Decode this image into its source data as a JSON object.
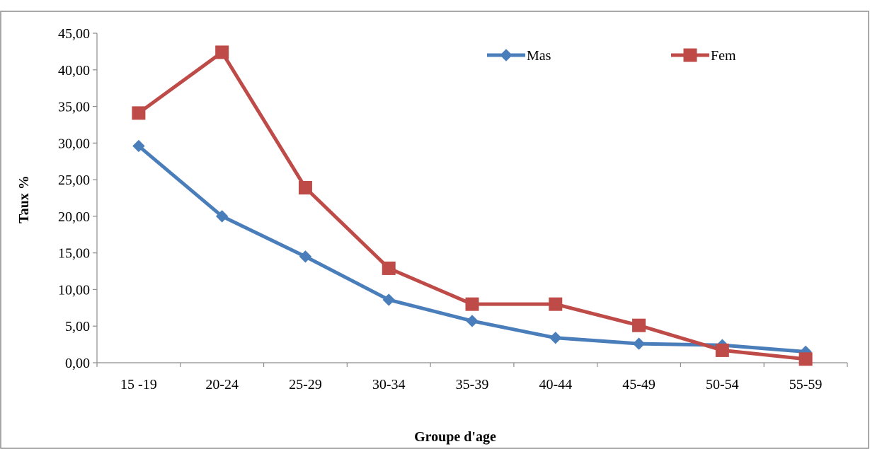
{
  "chart_data": {
    "type": "line",
    "title": "",
    "xlabel": "Groupe d'age",
    "ylabel": "Taux %",
    "categories": [
      "15 -19",
      "20-24",
      "25-29",
      "30-34",
      "35-39",
      "40-44",
      "45-49",
      "50-54",
      "55-59"
    ],
    "ylim": [
      0,
      45
    ],
    "yticks": [
      "0,00",
      "5,00",
      "10,00",
      "15,00",
      "20,00",
      "25,00",
      "30,00",
      "35,00",
      "40,00",
      "45,00"
    ],
    "grid": false,
    "legend_position": "top-right",
    "series": [
      {
        "name": "Mas",
        "color": "#4a7ebb",
        "marker": "diamond",
        "values": [
          29.6,
          20.0,
          14.5,
          8.6,
          5.7,
          3.4,
          2.6,
          2.4,
          1.5
        ]
      },
      {
        "name": "Fem",
        "color": "#be4b48",
        "marker": "square",
        "values": [
          34.1,
          42.4,
          23.9,
          12.9,
          8.0,
          8.0,
          5.1,
          1.7,
          0.5
        ]
      }
    ]
  }
}
